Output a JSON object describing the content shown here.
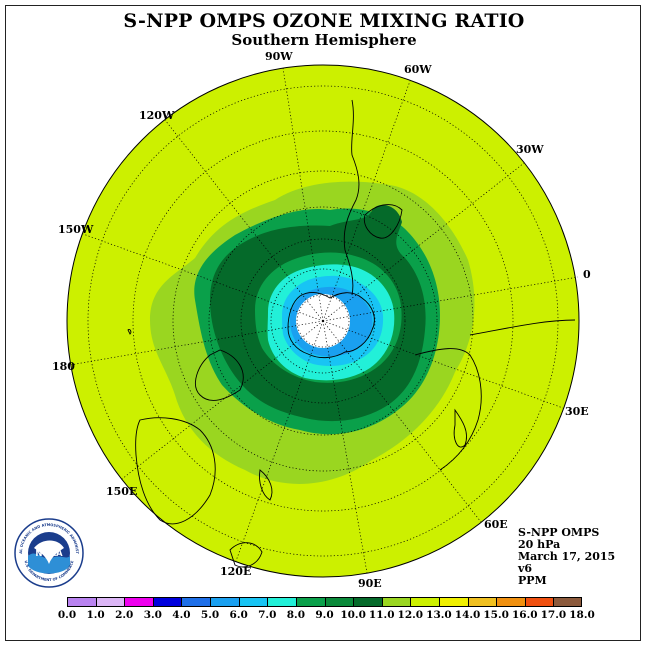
{
  "header": {
    "title": "S-NPP OMPS OZONE MIXING RATIO",
    "subtitle": "Southern Hemisphere"
  },
  "map": {
    "projection": "south-polar-stereographic",
    "longitude_labels": [
      "90W",
      "60W",
      "30W",
      "0",
      "30E",
      "60E",
      "90E",
      "120E",
      "150E",
      "180",
      "150W",
      "120W"
    ],
    "field": "ozone mixing ratio",
    "features": {
      "polar_minimum": "white core (< 3.0 PPM) near the South Pole",
      "ring": "dark green collar 9.0-10.0 PPM around Antarctica",
      "background": "yellow-green 11.0-12.0 PPM in the mid latitudes"
    }
  },
  "info": {
    "instrument": "S-NPP OMPS",
    "level": "20 hPa",
    "date": "March 17, 2015",
    "version": "v6",
    "units": "PPM"
  },
  "logo": {
    "label": "NOAA",
    "ring_text": "NATIONAL OCEANIC AND ATMOSPHERIC ADMINISTRATION",
    "ring_text_bottom": "U.S. DEPARTMENT OF COMMERCE"
  },
  "colorbar": {
    "labels": [
      "0.0",
      "1.0",
      "2.0",
      "3.0",
      "4.0",
      "5.0",
      "6.0",
      "7.0",
      "8.0",
      "9.0",
      "10.0",
      "11.0",
      "12.0",
      "13.0",
      "14.0",
      "15.0",
      "16.0",
      "17.0",
      "18.0"
    ],
    "colors": [
      "#b983f0",
      "#dcb6f6",
      "#ee00ee",
      "#0000dd",
      "#1e6fe8",
      "#1aa0f0",
      "#18c4f4",
      "#22f0d8",
      "#0aa04a",
      "#0a8a3a",
      "#056a2a",
      "#9ad620",
      "#ccf000",
      "#f0f000",
      "#f0c020",
      "#f09010",
      "#f05010",
      "#e00000",
      "#8c5a3c"
    ]
  }
}
